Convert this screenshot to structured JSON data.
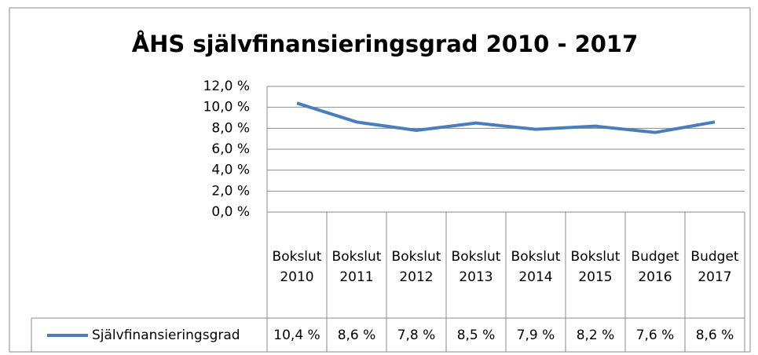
{
  "chart_data": {
    "type": "line",
    "title": "ÅHS självfinansieringsgrad 2010 - 2017",
    "categories": [
      "Bokslut 2010",
      "Bokslut 2011",
      "Bokslut 2012",
      "Bokslut 2013",
      "Bokslut 2014",
      "Bokslut 2015",
      "Budget 2016",
      "Budget 2017"
    ],
    "series": [
      {
        "name": "Självfinansieringsgrad",
        "color": "#4a7ebb",
        "values": [
          10.4,
          8.6,
          7.8,
          8.5,
          7.9,
          8.2,
          7.6,
          8.6
        ],
        "value_labels": [
          "10,4 %",
          "8,6 %",
          "7,8 %",
          "8,5 %",
          "7,9 %",
          "8,2 %",
          "7,6 %",
          "8,6 %"
        ]
      }
    ],
    "ylim": [
      0,
      12
    ],
    "yticks": [
      {
        "value": 0,
        "label": "0,0 %"
      },
      {
        "value": 2,
        "label": "2,0 %"
      },
      {
        "value": 4,
        "label": "4,0 %"
      },
      {
        "value": 6,
        "label": "6,0 %"
      },
      {
        "value": 8,
        "label": "8,0 %"
      },
      {
        "value": 10,
        "label": "10,0 %"
      },
      {
        "value": 12,
        "label": "12,0 %"
      }
    ],
    "grid": true
  }
}
